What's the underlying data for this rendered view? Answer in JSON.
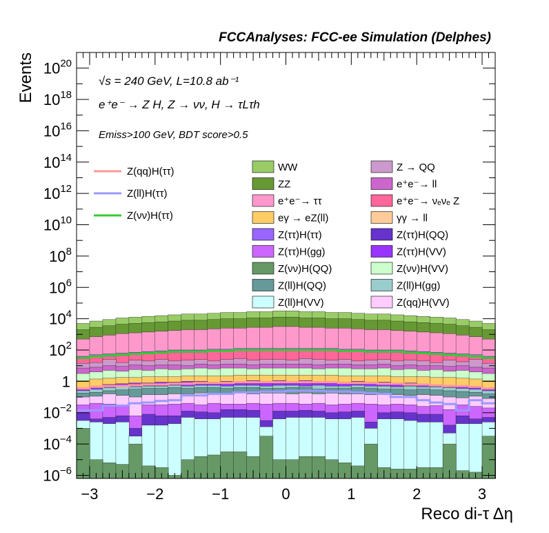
{
  "chart_data": {
    "type": "stacked-histogram",
    "title": "FCCAnalyses: FCC-ee Simulation (Delphes)",
    "xlabel": "Reco di-τ Δη",
    "ylabel": "Events",
    "xlim": [
      -3.2,
      3.2
    ],
    "ylog": true,
    "ylim_exponents": [
      -6.2,
      21
    ],
    "x_ticks": [
      "−3",
      "−2",
      "−1",
      "0",
      "1",
      "2",
      "3"
    ],
    "y_tick_exponents": [
      -6,
      -4,
      -2,
      0,
      2,
      4,
      6,
      8,
      10,
      12,
      14,
      16,
      18,
      20
    ],
    "annotations": {
      "energy": "√s = 240 GeV, L=10.8 ab⁻¹",
      "process": "e⁺e⁻ → Z H, Z → νν, H → τLτh",
      "cuts": "Emiss>100 GeV, BDT score>0.5"
    },
    "bins": 32,
    "stack_order_bottom_to_top": [
      "Z(νν)H(QQ)",
      "Z(ll)H(VV)",
      "Z(ττ)H(QQ)",
      "Z(ττ)H(gg)",
      "Z(qq)H(VV)",
      "Z(ll)H(QQ)",
      "Z(ll)H(gg)",
      "Z(ττ)H(VV)",
      "eγ → eZ(ll)",
      "Z(νν)H(VV)",
      "e⁺e⁻→ ll",
      "Z → QQ",
      "e⁺e⁻→ νₑνₑ Z",
      "Z(ττ)H(ττ)",
      "e⁺e⁻→ ττ",
      "ZZ",
      "WW"
    ],
    "stacked_series": [
      {
        "name": "WW",
        "color": "#99cc66",
        "log10_top": [
          3.7,
          3.85,
          3.95,
          4.05,
          4.1,
          4.15,
          4.2,
          4.25,
          4.3,
          4.3,
          4.35,
          4.4,
          4.4,
          4.45,
          4.45,
          4.5,
          4.5,
          4.45,
          4.45,
          4.4,
          4.4,
          4.35,
          4.3,
          4.3,
          4.25,
          4.2,
          4.15,
          4.1,
          4.05,
          3.95,
          3.85,
          3.7
        ]
      },
      {
        "name": "ZZ",
        "color": "#669933",
        "log10_top": [
          3.3,
          3.45,
          3.55,
          3.65,
          3.7,
          3.75,
          3.8,
          3.85,
          3.9,
          3.9,
          3.95,
          4.0,
          4.0,
          4.05,
          4.05,
          4.1,
          4.1,
          4.05,
          4.05,
          4.0,
          4.0,
          3.95,
          3.9,
          3.9,
          3.85,
          3.8,
          3.75,
          3.7,
          3.65,
          3.55,
          3.45,
          3.3
        ]
      },
      {
        "name": "e⁺e⁻→ ττ",
        "color": "#ff99cc",
        "log10_top": [
          2.7,
          2.85,
          2.95,
          3.05,
          3.1,
          3.15,
          3.2,
          3.25,
          3.3,
          3.3,
          3.35,
          3.4,
          3.4,
          3.45,
          3.45,
          3.5,
          3.5,
          3.45,
          3.45,
          3.4,
          3.4,
          3.35,
          3.3,
          3.3,
          3.25,
          3.2,
          3.15,
          3.1,
          3.05,
          2.95,
          2.85,
          2.7
        ]
      },
      {
        "name": "Z(ττ)H(ττ)",
        "color": "#9966ff",
        "log10_top": [
          1.6,
          1.7,
          1.75,
          1.8,
          1.85,
          1.9,
          1.95,
          2.0,
          2.0,
          2.0,
          2.05,
          2.05,
          2.1,
          2.1,
          2.1,
          2.1,
          2.1,
          2.1,
          2.1,
          2.1,
          2.05,
          2.05,
          2.0,
          2.0,
          2.0,
          1.95,
          1.9,
          1.85,
          1.8,
          1.75,
          1.7,
          1.6
        ]
      },
      {
        "name": "e⁺e⁻→ νₑνₑ Z",
        "color": "#ff6699",
        "log10_top": [
          1.45,
          1.55,
          1.6,
          1.65,
          1.7,
          1.75,
          1.8,
          1.85,
          1.85,
          1.85,
          1.9,
          1.9,
          1.95,
          1.95,
          1.95,
          1.95,
          1.95,
          1.95,
          1.95,
          1.95,
          1.9,
          1.9,
          1.85,
          1.85,
          1.85,
          1.8,
          1.75,
          1.7,
          1.65,
          1.6,
          1.55,
          1.45
        ]
      },
      {
        "name": "Z → QQ",
        "color": "#cc99cc",
        "log10_top": [
          1.15,
          1.2,
          1.4,
          1.2,
          1.35,
          1.3,
          1.4,
          1.3,
          1.35,
          1.4,
          1.3,
          1.4,
          1.45,
          1.35,
          1.4,
          1.4,
          1.35,
          1.45,
          1.4,
          1.35,
          1.4,
          1.3,
          1.35,
          1.4,
          1.3,
          1.35,
          1.3,
          1.2,
          1.35,
          1.25,
          1.4,
          1.15
        ]
      },
      {
        "name": "e⁺e⁻→ ll",
        "color": "#cc66cc",
        "log10_top": [
          0.85,
          0.9,
          1.0,
          0.95,
          1.05,
          1.0,
          1.05,
          1.05,
          1.0,
          1.1,
          1.05,
          1.1,
          1.1,
          1.05,
          1.1,
          1.1,
          1.1,
          1.1,
          1.05,
          1.1,
          1.1,
          1.05,
          1.05,
          1.1,
          1.0,
          1.05,
          1.0,
          1.0,
          0.95,
          1.0,
          0.9,
          0.85
        ]
      },
      {
        "name": "Z(νν)H(VV)",
        "color": "#ccffcc",
        "log10_top": [
          0.5,
          0.6,
          0.7,
          0.65,
          0.75,
          0.7,
          0.8,
          0.75,
          0.8,
          0.85,
          0.8,
          0.85,
          0.85,
          0.8,
          0.85,
          0.85,
          0.85,
          0.85,
          0.8,
          0.85,
          0.85,
          0.8,
          0.8,
          0.85,
          0.75,
          0.8,
          0.7,
          0.75,
          0.65,
          0.7,
          0.6,
          0.5
        ]
      },
      {
        "name": "eγ → eZ(ll)",
        "color": "#ffcc66",
        "log10_top": [
          0.05,
          0.15,
          0.2,
          0.25,
          0.25,
          0.3,
          0.3,
          0.3,
          0.35,
          0.35,
          0.35,
          0.35,
          0.4,
          0.4,
          0.4,
          0.4,
          0.4,
          0.4,
          0.4,
          0.4,
          0.35,
          0.35,
          0.35,
          0.35,
          0.3,
          0.3,
          0.3,
          0.25,
          0.25,
          0.2,
          0.15,
          0.05
        ]
      },
      {
        "name": "Z(ττ)H(VV)",
        "color": "#9933ff",
        "log10_top": [
          -0.45,
          -0.3,
          -0.2,
          -0.15,
          -0.1,
          -0.1,
          -0.05,
          -0.05,
          0.0,
          0.0,
          -0.05,
          0.0,
          0.0,
          0.05,
          0.0,
          0.05,
          0.0,
          0.05,
          0.0,
          0.0,
          -0.05,
          0.0,
          -0.05,
          -0.05,
          -0.1,
          -0.1,
          -0.15,
          -0.2,
          -0.25,
          -0.3,
          -0.35,
          -0.5
        ]
      },
      {
        "name": "Z(ll)H(gg)",
        "color": "#99cccc",
        "log10_top": [
          -0.6,
          -0.5,
          -0.4,
          -0.35,
          -0.35,
          -0.3,
          -0.3,
          -0.25,
          -0.3,
          -0.25,
          -0.25,
          -0.3,
          -0.25,
          -0.25,
          -0.3,
          -0.25,
          -0.25,
          -0.3,
          -0.25,
          -0.3,
          -0.3,
          -0.25,
          -0.3,
          -0.3,
          -0.35,
          -0.3,
          -0.35,
          -0.35,
          -0.4,
          -0.45,
          -0.5,
          -0.6
        ]
      },
      {
        "name": "Z(ll)H(QQ)",
        "color": "#669999",
        "log10_top": [
          -0.75,
          -0.7,
          -0.6,
          -0.55,
          -0.5,
          -0.45,
          -0.45,
          -0.4,
          -0.45,
          -0.4,
          -0.4,
          -0.45,
          -0.4,
          -0.4,
          -0.45,
          -0.45,
          -0.4,
          -0.4,
          -0.5,
          -0.45,
          -0.45,
          -0.4,
          -0.45,
          -0.5,
          -0.5,
          -0.55,
          -0.5,
          -0.55,
          -0.6,
          -0.65,
          -0.7,
          -0.8
        ]
      },
      {
        "name": "Z(qq)H(VV)",
        "color": "#ffccff",
        "log10_top": [
          -1.0,
          -0.95,
          -0.8,
          -0.9,
          -1.0,
          -0.85,
          -0.85,
          -0.8,
          -0.8,
          -0.75,
          -0.8,
          -0.75,
          -0.75,
          -0.8,
          -0.75,
          -0.75,
          -0.8,
          -0.75,
          -0.8,
          -0.75,
          -0.8,
          -0.8,
          -0.85,
          -0.8,
          -0.85,
          -0.9,
          -0.85,
          -0.9,
          -1.0,
          -1.05,
          -0.95,
          -1.1
        ]
      },
      {
        "name": "Z(ττ)H(gg)",
        "color": "#cc66ff",
        "log10_top": [
          -1.5,
          -1.4,
          -1.45,
          -1.6,
          -2.2,
          -1.5,
          -1.5,
          -1.45,
          -1.4,
          -1.5,
          -1.4,
          -1.45,
          -1.45,
          -1.4,
          -1.45,
          -1.4,
          -1.4,
          -1.45,
          -1.4,
          -1.5,
          -1.45,
          -1.4,
          -1.45,
          -1.5,
          -1.45,
          -1.5,
          -1.6,
          -1.55,
          -1.8,
          -1.5,
          -1.6,
          -1.7
        ]
      },
      {
        "name": "Z(ττ)H(QQ)",
        "color": "#6633cc",
        "log10_top": [
          -2.0,
          -2.4,
          -2.3,
          -2.2,
          -3.0,
          -2.1,
          -2.2,
          -2.2,
          -1.9,
          -1.95,
          -2.0,
          -1.8,
          -1.8,
          -1.85,
          -2.5,
          -1.9,
          -1.9,
          -1.85,
          -1.9,
          -2.0,
          -1.95,
          -1.9,
          -2.6,
          -2.0,
          -1.95,
          -2.0,
          -2.1,
          -2.1,
          -2.8,
          -2.2,
          -2.4,
          -2.3
        ]
      },
      {
        "name": "Z(ll)H(VV)",
        "color": "#ccffff",
        "log10_top": [
          -2.5,
          -2.6,
          -2.7,
          -2.6,
          -3.5,
          -2.8,
          -2.8,
          -2.7,
          -2.3,
          -2.4,
          -2.4,
          -2.3,
          -2.3,
          -2.3,
          -2.9,
          -2.4,
          -2.3,
          -2.3,
          -2.3,
          -2.4,
          -2.4,
          -2.3,
          -3.0,
          -2.4,
          -2.4,
          -2.5,
          -2.6,
          -2.6,
          -3.3,
          -2.7,
          -2.7,
          -2.6
        ]
      },
      {
        "name": "Z(νν)H(QQ)",
        "color": "#669966",
        "log10_top": [
          -3.0,
          -5.0,
          -5.2,
          -5.3,
          -4.0,
          -5.4,
          -5.5,
          -6.0,
          -5.0,
          -4.8,
          -4.7,
          -4.5,
          -4.5,
          -4.8,
          -3.5,
          -5.0,
          -5.0,
          -4.8,
          -4.8,
          -5.0,
          -5.2,
          -5.4,
          -4.0,
          -5.5,
          -5.6,
          -5.6,
          -5.5,
          -5.5,
          -4.0,
          -5.7,
          -5.8,
          -3.5
        ]
      }
    ],
    "overlay_series": [
      {
        "name": "Z(qq)H(ττ)",
        "color": "#ff9999",
        "log10_y": [
          -0.45,
          -0.35,
          -0.3,
          -0.3,
          -0.25,
          -0.2,
          -0.2,
          -0.15,
          -0.15,
          -0.1,
          -0.1,
          -0.1,
          -0.05,
          -0.05,
          -0.05,
          -0.05,
          -0.05,
          -0.05,
          -0.05,
          -0.05,
          -0.1,
          -0.1,
          -0.1,
          -0.15,
          -0.15,
          -0.2,
          -0.2,
          -0.25,
          -0.3,
          -0.3,
          -0.35,
          -0.45
        ]
      },
      {
        "name": "Z(ll)H(ττ)",
        "color": "#9999ff",
        "log10_y": [
          -1.85,
          -1.85,
          -1.55,
          -1.55,
          -1.4,
          -1.35,
          -1.25,
          -1.2,
          -0.9,
          -0.9,
          -0.8,
          -0.8,
          -0.7,
          -0.7,
          -0.65,
          -0.65,
          -0.6,
          -0.6,
          -0.6,
          -0.65,
          -0.65,
          -0.7,
          -0.75,
          -0.8,
          -1.0,
          -1.0,
          -1.2,
          -1.35,
          -1.45,
          -1.85,
          -1.2,
          -1.4
        ]
      },
      {
        "name": "Z(νν)H(ττ)",
        "color": "#33cc33",
        "log10_y": [
          1.5,
          1.6,
          1.65,
          1.7,
          1.75,
          1.8,
          1.85,
          1.9,
          1.9,
          1.9,
          1.95,
          1.95,
          2.0,
          2.0,
          2.0,
          2.0,
          2.0,
          2.0,
          2.0,
          2.0,
          1.95,
          1.95,
          1.9,
          1.9,
          1.9,
          1.85,
          1.8,
          1.75,
          1.7,
          1.65,
          1.6,
          1.5
        ]
      }
    ],
    "legend_lines": [
      {
        "name": "Z(qq)H(ττ)",
        "color": "#ff9999"
      },
      {
        "name": "Z(ll)H(ττ)",
        "color": "#9999ff"
      },
      {
        "name": "Z(νν)H(ττ)",
        "color": "#33cc33"
      }
    ],
    "legend_boxes": [
      {
        "name": "WW",
        "color": "#99cc66"
      },
      {
        "name": "Z → QQ",
        "color": "#cc99cc"
      },
      {
        "name": "ZZ",
        "color": "#669933"
      },
      {
        "name": "e⁺e⁻→ ll",
        "color": "#cc66cc"
      },
      {
        "name": "e⁺e⁻→ ττ",
        "color": "#ff99cc"
      },
      {
        "name": "e⁺e⁻→ νₑνₑ Z",
        "color": "#ff6699"
      },
      {
        "name": "eγ → eZ(ll)",
        "color": "#ffcc66"
      },
      {
        "name": "γγ → ll",
        "color": "#ffcc99"
      },
      {
        "name": "Z(ττ)H(ττ)",
        "color": "#9966ff"
      },
      {
        "name": "Z(ττ)H(QQ)",
        "color": "#6633cc"
      },
      {
        "name": "Z(ττ)H(gg)",
        "color": "#cc66ff"
      },
      {
        "name": "Z(ττ)H(VV)",
        "color": "#9933ff"
      },
      {
        "name": "Z(νν)H(QQ)",
        "color": "#669966"
      },
      {
        "name": "Z(νν)H(VV)",
        "color": "#ccffcc"
      },
      {
        "name": "Z(ll)H(QQ)",
        "color": "#669999"
      },
      {
        "name": "Z(ll)H(gg)",
        "color": "#99cccc"
      },
      {
        "name": "Z(ll)H(VV)",
        "color": "#ccffff"
      },
      {
        "name": "Z(qq)H(VV)",
        "color": "#ffccff"
      }
    ]
  }
}
